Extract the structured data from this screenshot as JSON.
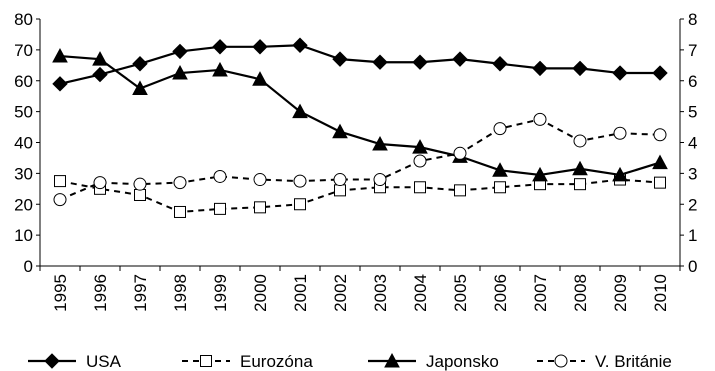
{
  "chart_data": {
    "type": "line",
    "x": [
      "1995",
      "1996",
      "1997",
      "1998",
      "1999",
      "2000",
      "2001",
      "2002",
      "2003",
      "2004",
      "2005",
      "2006",
      "2007",
      "2008",
      "2009",
      "2010"
    ],
    "ylim_left": [
      0,
      80
    ],
    "yticks_left": [
      0,
      10,
      20,
      30,
      40,
      50,
      60,
      70,
      80
    ],
    "ylim_right": [
      0,
      8
    ],
    "yticks_right": [
      0,
      1,
      2,
      3,
      4,
      5,
      6,
      7,
      8
    ],
    "grid": false,
    "legend_position": "bottom",
    "series": [
      {
        "name": "USA",
        "axis": "left",
        "marker": "diamond",
        "line": "solid",
        "values": [
          59,
          62,
          65.5,
          69.5,
          71,
          71,
          71.5,
          67,
          66,
          66,
          67,
          65.5,
          64,
          64,
          62.5,
          62.5
        ]
      },
      {
        "name": "Eurozóna",
        "axis": "right",
        "marker": "square-open",
        "line": "dashed",
        "values": [
          2.75,
          2.5,
          2.3,
          1.75,
          1.85,
          1.9,
          2.0,
          2.45,
          2.55,
          2.55,
          2.45,
          2.55,
          2.65,
          2.65,
          2.8,
          2.7
        ]
      },
      {
        "name": "Japonsko",
        "axis": "left",
        "marker": "triangle",
        "line": "solid",
        "values": [
          68,
          67,
          57.5,
          62.5,
          63.5,
          60.5,
          50,
          43.5,
          39.5,
          38.5,
          35.5,
          31,
          29.5,
          31.5,
          29.5,
          33.5
        ]
      },
      {
        "name": "V. Británie",
        "axis": "right",
        "marker": "circle-open",
        "line": "dashed",
        "values": [
          2.15,
          2.7,
          2.65,
          2.7,
          2.9,
          2.8,
          2.75,
          2.8,
          2.8,
          3.4,
          3.65,
          4.45,
          4.75,
          4.05,
          4.3,
          4.25
        ]
      }
    ]
  }
}
